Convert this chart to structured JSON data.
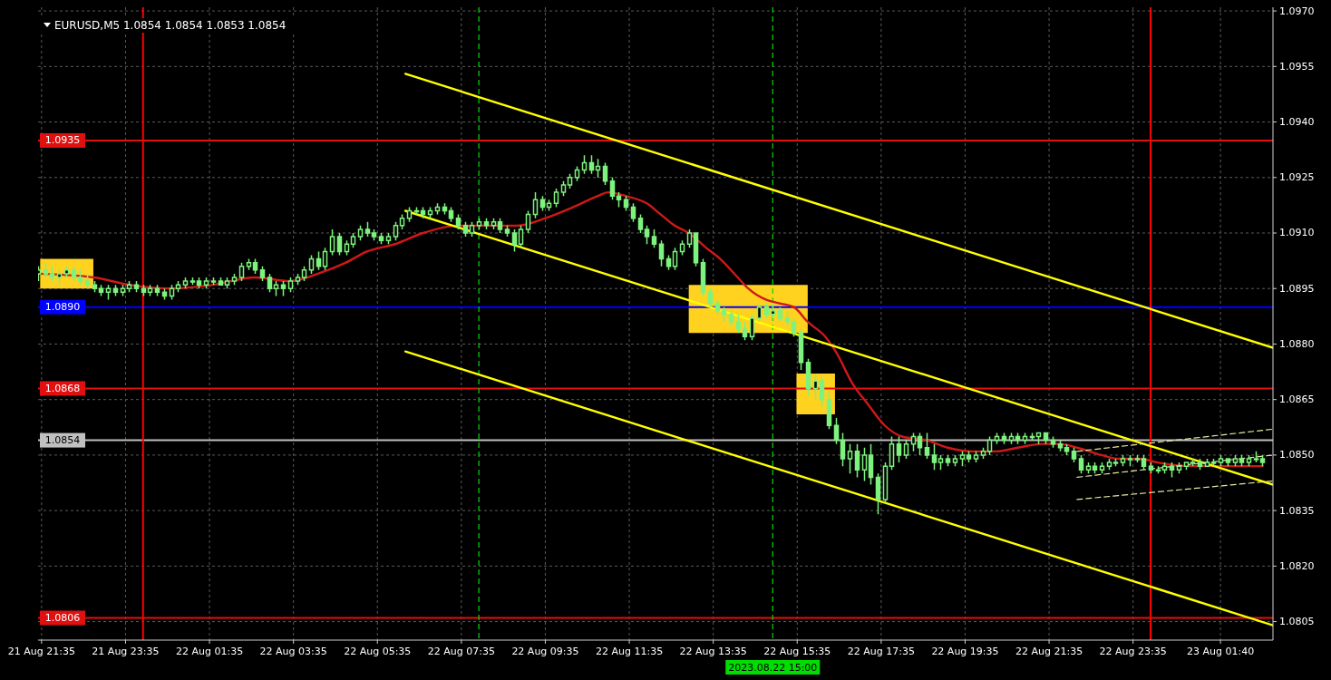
{
  "chart_data": {
    "type": "candlestick",
    "title": "EURUSD,M5 1.0854 1.0854 1.0853 1.0854",
    "xlim": [
      "2023-08-21T21:30",
      "2023-08-23T02:55"
    ],
    "xticks": [
      {
        "value": "2023-08-21T21:35",
        "label": "21 Aug 21:35"
      },
      {
        "value": "2023-08-21T23:35",
        "label": "21 Aug 23:35"
      },
      {
        "value": "2023-08-22T01:35",
        "label": "22 Aug 01:35"
      },
      {
        "value": "2023-08-22T03:35",
        "label": "22 Aug 03:35"
      },
      {
        "value": "2023-08-22T05:35",
        "label": "22 Aug 05:35"
      },
      {
        "value": "2023-08-22T07:35",
        "label": "22 Aug 07:35"
      },
      {
        "value": "2023-08-22T09:35",
        "label": "22 Aug 09:35"
      },
      {
        "value": "2023-08-22T11:35",
        "label": "22 Aug 11:35"
      },
      {
        "value": "2023-08-22T13:35",
        "label": "22 Aug 13:35"
      },
      {
        "value": "2023-08-22T15:35",
        "label": "22 Aug 15:35"
      },
      {
        "value": "2023-08-22T17:35",
        "label": "22 Aug 17:35"
      },
      {
        "value": "2023-08-22T19:35",
        "label": "22 Aug 19:35"
      },
      {
        "value": "2023-08-22T21:35",
        "label": "22 Aug 21:35"
      },
      {
        "value": "2023-08-22T23:35",
        "label": "22 Aug 23:35"
      },
      {
        "value": "2023-08-23T01:40",
        "label": "23 Aug 01:40"
      }
    ],
    "ylim": [
      1.08,
      1.0971
    ],
    "yticks": [
      {
        "value": 1.097,
        "label": "1.0970"
      },
      1.0955,
      {
        "value": 1.094,
        "label": "1.0940"
      },
      1.0925,
      {
        "value": 1.091,
        "label": "1.0910"
      },
      1.0895,
      {
        "value": 1.088,
        "label": "1.0880"
      },
      1.0865,
      {
        "value": 1.085,
        "label": "1.0850"
      },
      1.0835,
      {
        "value": 1.082,
        "label": "1.0820"
      },
      1.0805
    ],
    "grid": true,
    "series": [
      {
        "type": "area",
        "color": "#ffd21f",
        "x": [
          "2023-08-21T21:33",
          "2023-08-21T22:49"
        ],
        "values": [
          null,
          null
        ],
        "lower": [
          1.0895,
          1.0895
        ],
        "upper": [
          1.0903,
          1.0903
        ]
      },
      {
        "type": "area",
        "color": "#ffd21f",
        "x": [
          "2023-08-22T13:00",
          "2023-08-22T15:50"
        ],
        "values": [
          null,
          null
        ],
        "lower": [
          1.0883,
          1.0883
        ],
        "upper": [
          1.0896,
          1.0896
        ]
      },
      {
        "type": "area",
        "color": "#ffd21f",
        "x": [
          "2023-08-22T15:34",
          "2023-08-22T16:29"
        ],
        "values": [
          null,
          null
        ],
        "lower": [
          1.0861,
          1.0861
        ],
        "upper": [
          1.0872,
          1.0872
        ]
      },
      {
        "type": "candlestick",
        "color": "#7ef27e",
        "x": [
          "2023-08-21T21:30",
          "2023-08-21T21:40",
          "2023-08-21T21:50",
          "2023-08-21T22:00",
          "2023-08-21T22:10",
          "2023-08-21T22:20",
          "2023-08-21T22:30",
          "2023-08-21T22:40",
          "2023-08-21T22:50",
          "2023-08-21T23:00",
          "2023-08-21T23:10",
          "2023-08-21T23:20",
          "2023-08-21T23:30",
          "2023-08-21T23:40",
          "2023-08-21T23:50",
          "2023-08-22T00:00",
          "2023-08-22T00:10",
          "2023-08-22T00:20",
          "2023-08-22T00:30",
          "2023-08-22T00:40",
          "2023-08-22T00:50",
          "2023-08-22T01:00",
          "2023-08-22T01:10",
          "2023-08-22T01:20",
          "2023-08-22T01:30",
          "2023-08-22T01:40",
          "2023-08-22T01:50",
          "2023-08-22T02:00",
          "2023-08-22T02:10",
          "2023-08-22T02:20",
          "2023-08-22T02:30",
          "2023-08-22T02:40",
          "2023-08-22T02:50",
          "2023-08-22T03:00",
          "2023-08-22T03:10",
          "2023-08-22T03:20",
          "2023-08-22T03:30",
          "2023-08-22T03:40",
          "2023-08-22T03:50",
          "2023-08-22T04:00",
          "2023-08-22T04:10",
          "2023-08-22T04:20",
          "2023-08-22T04:30",
          "2023-08-22T04:40",
          "2023-08-22T04:50",
          "2023-08-22T05:00",
          "2023-08-22T05:10",
          "2023-08-22T05:20",
          "2023-08-22T05:30",
          "2023-08-22T05:40",
          "2023-08-22T05:50",
          "2023-08-22T06:00",
          "2023-08-22T06:10",
          "2023-08-22T06:20",
          "2023-08-22T06:30",
          "2023-08-22T06:40",
          "2023-08-22T06:50",
          "2023-08-22T07:00",
          "2023-08-22T07:10",
          "2023-08-22T07:20",
          "2023-08-22T07:30",
          "2023-08-22T07:40",
          "2023-08-22T07:50",
          "2023-08-22T08:00",
          "2023-08-22T08:10",
          "2023-08-22T08:20",
          "2023-08-22T08:30",
          "2023-08-22T08:40",
          "2023-08-22T08:50",
          "2023-08-22T09:00",
          "2023-08-22T09:10",
          "2023-08-22T09:20",
          "2023-08-22T09:30",
          "2023-08-22T09:40",
          "2023-08-22T09:50",
          "2023-08-22T10:00",
          "2023-08-22T10:10",
          "2023-08-22T10:20",
          "2023-08-22T10:30",
          "2023-08-22T10:40",
          "2023-08-22T10:50",
          "2023-08-22T11:00",
          "2023-08-22T11:10",
          "2023-08-22T11:20",
          "2023-08-22T11:30",
          "2023-08-22T11:40",
          "2023-08-22T11:50",
          "2023-08-22T12:00",
          "2023-08-22T12:10",
          "2023-08-22T12:20",
          "2023-08-22T12:30",
          "2023-08-22T12:40",
          "2023-08-22T12:50",
          "2023-08-22T13:00",
          "2023-08-22T13:10",
          "2023-08-22T13:20",
          "2023-08-22T13:30",
          "2023-08-22T13:40",
          "2023-08-22T13:50",
          "2023-08-22T14:00",
          "2023-08-22T14:10",
          "2023-08-22T14:20",
          "2023-08-22T14:30",
          "2023-08-22T14:40",
          "2023-08-22T14:50",
          "2023-08-22T15:00",
          "2023-08-22T15:10",
          "2023-08-22T15:20",
          "2023-08-22T15:30",
          "2023-08-22T15:40",
          "2023-08-22T15:50",
          "2023-08-22T16:00",
          "2023-08-22T16:10",
          "2023-08-22T16:20",
          "2023-08-22T16:30",
          "2023-08-22T16:40",
          "2023-08-22T16:50",
          "2023-08-22T17:00",
          "2023-08-22T17:10",
          "2023-08-22T17:20",
          "2023-08-22T17:30",
          "2023-08-22T17:40",
          "2023-08-22T17:50",
          "2023-08-22T18:00",
          "2023-08-22T18:10",
          "2023-08-22T18:20",
          "2023-08-22T18:30",
          "2023-08-22T18:40",
          "2023-08-22T18:50",
          "2023-08-22T19:00",
          "2023-08-22T19:10",
          "2023-08-22T19:20",
          "2023-08-22T19:30",
          "2023-08-22T19:40",
          "2023-08-22T19:50",
          "2023-08-22T20:00",
          "2023-08-22T20:10",
          "2023-08-22T20:20",
          "2023-08-22T20:30",
          "2023-08-22T20:40",
          "2023-08-22T20:50",
          "2023-08-22T21:00",
          "2023-08-22T21:10",
          "2023-08-22T21:20",
          "2023-08-22T21:30",
          "2023-08-22T21:40",
          "2023-08-22T21:50",
          "2023-08-22T22:00",
          "2023-08-22T22:10",
          "2023-08-22T22:20",
          "2023-08-22T22:30",
          "2023-08-22T22:40",
          "2023-08-22T22:50",
          "2023-08-22T23:00",
          "2023-08-22T23:10",
          "2023-08-22T23:20",
          "2023-08-22T23:30",
          "2023-08-22T23:40",
          "2023-08-22T23:50",
          "2023-08-23T00:00",
          "2023-08-23T00:10",
          "2023-08-23T00:20",
          "2023-08-23T00:30",
          "2023-08-23T00:40",
          "2023-08-23T00:50",
          "2023-08-23T01:00",
          "2023-08-23T01:10",
          "2023-08-23T01:20",
          "2023-08-23T01:30",
          "2023-08-23T01:40",
          "2023-08-23T01:50",
          "2023-08-23T02:00",
          "2023-08-23T02:10",
          "2023-08-23T02:20",
          "2023-08-23T02:30",
          "2023-08-23T02:40"
        ],
        "ohlc": [
          [
            1.0899,
            1.0901,
            1.0897,
            1.09
          ],
          [
            1.09,
            1.0902,
            1.0898,
            1.0899
          ],
          [
            1.0899,
            1.0901,
            1.0897,
            1.0898
          ],
          [
            1.0898,
            1.09,
            1.0896,
            1.0899
          ],
          [
            1.0899,
            1.0901,
            1.0898,
            1.09
          ],
          [
            1.09,
            1.0901,
            1.0897,
            1.0898
          ],
          [
            1.0898,
            1.09,
            1.0896,
            1.0897
          ],
          [
            1.0897,
            1.0899,
            1.0895,
            1.0896
          ],
          [
            1.0896,
            1.0897,
            1.0894,
            1.0895
          ],
          [
            1.0895,
            1.0896,
            1.0893,
            1.0894
          ],
          [
            1.0894,
            1.0896,
            1.0892,
            1.0895
          ],
          [
            1.0895,
            1.0896,
            1.0893,
            1.0894
          ],
          [
            1.0894,
            1.0896,
            1.0893,
            1.0895
          ],
          [
            1.0895,
            1.0897,
            1.0894,
            1.0896
          ],
          [
            1.0896,
            1.0897,
            1.0894,
            1.0895
          ],
          [
            1.0895,
            1.0896,
            1.0893,
            1.0894
          ],
          [
            1.0894,
            1.0896,
            1.0893,
            1.0895
          ],
          [
            1.0895,
            1.0896,
            1.0893,
            1.0894
          ],
          [
            1.0894,
            1.0895,
            1.0892,
            1.0893
          ],
          [
            1.0893,
            1.0896,
            1.0892,
            1.0895
          ],
          [
            1.0895,
            1.0897,
            1.0894,
            1.0896
          ],
          [
            1.0896,
            1.0898,
            1.0895,
            1.0897
          ],
          [
            1.0897,
            1.0898,
            1.0896,
            1.0897
          ],
          [
            1.0897,
            1.0898,
            1.0895,
            1.0896
          ],
          [
            1.0896,
            1.0898,
            1.0895,
            1.0897
          ],
          [
            1.0897,
            1.0898,
            1.0896,
            1.0897
          ],
          [
            1.0897,
            1.0898,
            1.0896,
            1.0896
          ],
          [
            1.0896,
            1.0898,
            1.0895,
            1.0897
          ],
          [
            1.0897,
            1.0899,
            1.0896,
            1.0898
          ],
          [
            1.0898,
            1.0902,
            1.0897,
            1.0901
          ],
          [
            1.0901,
            1.0903,
            1.09,
            1.0902
          ],
          [
            1.0902,
            1.0903,
            1.0899,
            1.09
          ],
          [
            1.09,
            1.0901,
            1.0897,
            1.0898
          ],
          [
            1.0898,
            1.0899,
            1.0894,
            1.0895
          ],
          [
            1.0895,
            1.0897,
            1.0893,
            1.0896
          ],
          [
            1.0896,
            1.0897,
            1.0893,
            1.0895
          ],
          [
            1.0895,
            1.0898,
            1.0894,
            1.0897
          ],
          [
            1.0897,
            1.0899,
            1.0896,
            1.0898
          ],
          [
            1.0898,
            1.0901,
            1.0897,
            1.09
          ],
          [
            1.09,
            1.0904,
            1.0899,
            1.0903
          ],
          [
            1.0903,
            1.0905,
            1.09,
            1.0901
          ],
          [
            1.0901,
            1.0906,
            1.09,
            1.0905
          ],
          [
            1.0905,
            1.0911,
            1.0904,
            1.0909
          ],
          [
            1.0909,
            1.091,
            1.0904,
            1.0905
          ],
          [
            1.0905,
            1.0908,
            1.0904,
            1.0907
          ],
          [
            1.0907,
            1.091,
            1.0906,
            1.0909
          ],
          [
            1.0909,
            1.0912,
            1.0908,
            1.0911
          ],
          [
            1.0911,
            1.0913,
            1.0909,
            1.091
          ],
          [
            1.091,
            1.0911,
            1.0908,
            1.0909
          ],
          [
            1.0909,
            1.091,
            1.0907,
            1.0908
          ],
          [
            1.0908,
            1.091,
            1.0907,
            1.0909
          ],
          [
            1.0909,
            1.0913,
            1.0908,
            1.0912
          ],
          [
            1.0912,
            1.0915,
            1.0911,
            1.0914
          ],
          [
            1.0914,
            1.0917,
            1.0913,
            1.0916
          ],
          [
            1.0916,
            1.0917,
            1.0915,
            1.0916
          ],
          [
            1.0916,
            1.0917,
            1.0914,
            1.0915
          ],
          [
            1.0915,
            1.0917,
            1.0914,
            1.0916
          ],
          [
            1.0916,
            1.0918,
            1.0915,
            1.0917
          ],
          [
            1.0917,
            1.0918,
            1.0915,
            1.0916
          ],
          [
            1.0916,
            1.0917,
            1.0913,
            1.0914
          ],
          [
            1.0914,
            1.0915,
            1.0911,
            1.0912
          ],
          [
            1.0912,
            1.0913,
            1.0909,
            1.091
          ],
          [
            1.091,
            1.0913,
            1.0909,
            1.0912
          ],
          [
            1.0912,
            1.0914,
            1.0911,
            1.0913
          ],
          [
            1.0913,
            1.0914,
            1.0911,
            1.0912
          ],
          [
            1.0912,
            1.0914,
            1.0911,
            1.0913
          ],
          [
            1.0913,
            1.0914,
            1.091,
            1.0911
          ],
          [
            1.0911,
            1.0912,
            1.0909,
            1.091
          ],
          [
            1.091,
            1.0911,
            1.0905,
            1.0907
          ],
          [
            1.0907,
            1.0912,
            1.0906,
            1.0911
          ],
          [
            1.0911,
            1.0916,
            1.091,
            1.0915
          ],
          [
            1.0915,
            1.0921,
            1.0914,
            1.0919
          ],
          [
            1.0919,
            1.092,
            1.0916,
            1.0917
          ],
          [
            1.0917,
            1.0919,
            1.0916,
            1.0918
          ],
          [
            1.0918,
            1.0922,
            1.0917,
            1.0921
          ],
          [
            1.0921,
            1.0924,
            1.092,
            1.0923
          ],
          [
            1.0923,
            1.0926,
            1.0922,
            1.0925
          ],
          [
            1.0925,
            1.0928,
            1.0924,
            1.0927
          ],
          [
            1.0927,
            1.0931,
            1.0926,
            1.0929
          ],
          [
            1.0929,
            1.0931,
            1.0926,
            1.0927
          ],
          [
            1.0927,
            1.093,
            1.0925,
            1.0928
          ],
          [
            1.0928,
            1.0929,
            1.0923,
            1.0924
          ],
          [
            1.0924,
            1.0925,
            1.0919,
            1.092
          ],
          [
            1.092,
            1.0921,
            1.0917,
            1.0919
          ],
          [
            1.0919,
            1.092,
            1.0916,
            1.0917
          ],
          [
            1.0917,
            1.0918,
            1.0913,
            1.0914
          ],
          [
            1.0914,
            1.0915,
            1.091,
            1.0911
          ],
          [
            1.0911,
            1.0912,
            1.0907,
            1.0909
          ],
          [
            1.0909,
            1.0911,
            1.0906,
            1.0907
          ],
          [
            1.0907,
            1.0908,
            1.0901,
            1.0903
          ],
          [
            1.0903,
            1.0904,
            1.09,
            1.0901
          ],
          [
            1.0901,
            1.0906,
            1.09,
            1.0905
          ],
          [
            1.0905,
            1.0908,
            1.0904,
            1.0907
          ],
          [
            1.0907,
            1.0911,
            1.0906,
            1.091
          ],
          [
            1.091,
            1.091,
            1.0901,
            1.0902
          ],
          [
            1.0902,
            1.0903,
            1.0893,
            1.0894
          ],
          [
            1.0894,
            1.0895,
            1.089,
            1.0891
          ],
          [
            1.0891,
            1.0892,
            1.0888,
            1.0889
          ],
          [
            1.0889,
            1.089,
            1.0886,
            1.0888
          ],
          [
            1.0888,
            1.0889,
            1.0885,
            1.0886
          ],
          [
            1.0886,
            1.0888,
            1.0883,
            1.0884
          ],
          [
            1.0884,
            1.0886,
            1.0881,
            1.0882
          ],
          [
            1.0882,
            1.0888,
            1.0881,
            1.0887
          ],
          [
            1.0887,
            1.0891,
            1.0886,
            1.089
          ],
          [
            1.089,
            1.0891,
            1.0887,
            1.0888
          ],
          [
            1.0888,
            1.0891,
            1.0887,
            1.0889
          ],
          [
            1.0889,
            1.089,
            1.0886,
            1.0887
          ],
          [
            1.0887,
            1.0889,
            1.0885,
            1.0886
          ],
          [
            1.0886,
            1.0887,
            1.0882,
            1.0883
          ],
          [
            1.0883,
            1.0884,
            1.0873,
            1.0875
          ],
          [
            1.0875,
            1.0876,
            1.0866,
            1.0868
          ],
          [
            1.0868,
            1.0872,
            1.0865,
            1.087
          ],
          [
            1.087,
            1.0871,
            1.0863,
            1.0865
          ],
          [
            1.0865,
            1.0867,
            1.0857,
            1.0858
          ],
          [
            1.0858,
            1.086,
            1.0853,
            1.0854
          ],
          [
            1.0854,
            1.0856,
            1.0847,
            1.0849
          ],
          [
            1.0849,
            1.0853,
            1.0845,
            1.0851
          ],
          [
            1.0851,
            1.0853,
            1.0844,
            1.0846
          ],
          [
            1.0846,
            1.0852,
            1.0843,
            1.085
          ],
          [
            1.085,
            1.0853,
            1.0842,
            1.0844
          ],
          [
            1.0844,
            1.0845,
            1.0834,
            1.0838
          ],
          [
            1.0838,
            1.0848,
            1.0837,
            1.0847
          ],
          [
            1.0847,
            1.0855,
            1.0846,
            1.0853
          ],
          [
            1.0853,
            1.0855,
            1.0848,
            1.085
          ],
          [
            1.085,
            1.0854,
            1.0849,
            1.0853
          ],
          [
            1.0853,
            1.0856,
            1.0851,
            1.0855
          ],
          [
            1.0855,
            1.0856,
            1.085,
            1.0852
          ],
          [
            1.0852,
            1.0856,
            1.0849,
            1.085
          ],
          [
            1.085,
            1.0853,
            1.0846,
            1.0848
          ],
          [
            1.0848,
            1.085,
            1.0846,
            1.0849
          ],
          [
            1.0849,
            1.085,
            1.0847,
            1.0848
          ],
          [
            1.0848,
            1.085,
            1.0847,
            1.0849
          ],
          [
            1.0849,
            1.0851,
            1.0847,
            1.085
          ],
          [
            1.085,
            1.0851,
            1.0848,
            1.0849
          ],
          [
            1.0849,
            1.0851,
            1.0848,
            1.085
          ],
          [
            1.085,
            1.0852,
            1.0849,
            1.0851
          ],
          [
            1.0851,
            1.0855,
            1.085,
            1.0854
          ],
          [
            1.0854,
            1.0856,
            1.0853,
            1.0855
          ],
          [
            1.0855,
            1.0856,
            1.0853,
            1.0854
          ],
          [
            1.0854,
            1.0856,
            1.0853,
            1.0855
          ],
          [
            1.0855,
            1.0856,
            1.0853,
            1.0854
          ],
          [
            1.0854,
            1.0856,
            1.0853,
            1.0855
          ],
          [
            1.0855,
            1.0856,
            1.0854,
            1.0855
          ],
          [
            1.0855,
            1.0856,
            1.0853,
            1.0856
          ],
          [
            1.0856,
            1.0856,
            1.0853,
            1.0854
          ],
          [
            1.0854,
            1.0855,
            1.0852,
            1.0853
          ],
          [
            1.0853,
            1.0854,
            1.0851,
            1.0852
          ],
          [
            1.0852,
            1.0853,
            1.085,
            1.0851
          ],
          [
            1.0851,
            1.0852,
            1.0848,
            1.0849
          ],
          [
            1.0849,
            1.085,
            1.0845,
            1.0846
          ],
          [
            1.0846,
            1.0848,
            1.0845,
            1.0847
          ],
          [
            1.0847,
            1.0848,
            1.0845,
            1.0846
          ],
          [
            1.0846,
            1.0848,
            1.0845,
            1.0847
          ],
          [
            1.0847,
            1.0849,
            1.0846,
            1.0848
          ],
          [
            1.0848,
            1.0849,
            1.0847,
            1.0848
          ],
          [
            1.0848,
            1.085,
            1.0847,
            1.0849
          ],
          [
            1.0849,
            1.085,
            1.0847,
            1.0849
          ],
          [
            1.0849,
            1.085,
            1.0848,
            1.0849
          ],
          [
            1.0849,
            1.085,
            1.0846,
            1.0847
          ],
          [
            1.0847,
            1.0848,
            1.0845,
            1.0846
          ],
          [
            1.0846,
            1.0847,
            1.0845,
            1.0846
          ],
          [
            1.0846,
            1.0848,
            1.0845,
            1.0847
          ],
          [
            1.0847,
            1.0848,
            1.0844,
            1.0846
          ],
          [
            1.0846,
            1.0848,
            1.0845,
            1.0847
          ],
          [
            1.0847,
            1.0848,
            1.0846,
            1.0848
          ],
          [
            1.0848,
            1.0849,
            1.0847,
            1.0848
          ],
          [
            1.0848,
            1.0849,
            1.0846,
            1.0847
          ],
          [
            1.0847,
            1.0849,
            1.0847,
            1.0848
          ],
          [
            1.0848,
            1.0849,
            1.0847,
            1.0848
          ],
          [
            1.0848,
            1.085,
            1.0847,
            1.0849
          ],
          [
            1.0849,
            1.0849,
            1.0847,
            1.0848
          ],
          [
            1.0848,
            1.085,
            1.0847,
            1.0849
          ],
          [
            1.0849,
            1.085,
            1.0847,
            1.0848
          ],
          [
            1.0848,
            1.085,
            1.0847,
            1.0849
          ],
          [
            1.0849,
            1.0851,
            1.0848,
            1.0849
          ],
          [
            1.0849,
            1.085,
            1.0847,
            1.0848
          ]
        ]
      },
      {
        "type": "line",
        "color": "#d01818",
        "x": [
          "2023-08-21T21:30",
          "2023-08-21T22:50",
          "2023-08-21T23:40",
          "2023-08-22T00:40",
          "2023-08-22T01:40",
          "2023-08-22T02:40",
          "2023-08-22T03:30",
          "2023-08-22T04:10",
          "2023-08-22T04:50",
          "2023-08-22T05:20",
          "2023-08-22T06:00",
          "2023-08-22T06:40",
          "2023-08-22T07:30",
          "2023-08-22T08:10",
          "2023-08-22T08:55",
          "2023-08-22T09:35",
          "2023-08-22T10:15",
          "2023-08-22T10:50",
          "2023-08-22T11:05",
          "2023-08-22T11:30",
          "2023-08-22T12:00",
          "2023-08-22T12:20",
          "2023-08-22T12:40",
          "2023-08-22T13:00",
          "2023-08-22T13:25",
          "2023-08-22T13:45",
          "2023-08-22T14:10",
          "2023-08-22T14:25",
          "2023-08-22T14:50",
          "2023-08-22T15:10",
          "2023-08-22T15:30",
          "2023-08-22T15:50",
          "2023-08-22T16:15",
          "2023-08-22T16:30",
          "2023-08-22T16:55",
          "2023-08-22T17:15",
          "2023-08-22T17:40",
          "2023-08-22T18:05",
          "2023-08-22T18:40",
          "2023-08-22T19:10",
          "2023-08-22T19:45",
          "2023-08-22T20:20",
          "2023-08-22T20:50",
          "2023-08-22T21:25",
          "2023-08-22T21:50",
          "2023-08-22T22:15",
          "2023-08-22T22:50",
          "2023-08-22T23:15",
          "2023-08-22T23:45",
          "2023-08-23T00:10",
          "2023-08-23T00:55",
          "2023-08-23T01:35",
          "2023-08-23T02:40"
        ],
        "values": [
          1.0899,
          1.0898,
          1.0896,
          1.0895,
          1.0896,
          1.0898,
          1.0897,
          1.0899,
          1.0902,
          1.0905,
          1.0907,
          1.091,
          1.0912,
          1.0912,
          1.0912,
          1.0914,
          1.0917,
          1.092,
          1.0921,
          1.092,
          1.0918,
          1.0915,
          1.0912,
          1.091,
          1.0906,
          1.0903,
          1.0898,
          1.0895,
          1.0892,
          1.0891,
          1.089,
          1.0886,
          1.0882,
          1.0878,
          1.0869,
          1.0864,
          1.0858,
          1.0855,
          1.0854,
          1.0852,
          1.0851,
          1.0851,
          1.0852,
          1.0853,
          1.0853,
          1.0852,
          1.085,
          1.0849,
          1.0849,
          1.0848,
          1.0847,
          1.0847,
          1.0847
        ]
      },
      {
        "type": "line",
        "color": "#ffff00",
        "x": [
          "2023-08-22T06:15",
          "2023-08-23T02:55"
        ],
        "values": [
          1.0953,
          1.0879
        ]
      },
      {
        "type": "line",
        "color": "#ffff00",
        "x": [
          "2023-08-22T06:15",
          "2023-08-23T02:55"
        ],
        "values": [
          1.0916,
          1.0842
        ]
      },
      {
        "type": "line",
        "color": "#ffff00",
        "x": [
          "2023-08-22T06:15",
          "2023-08-23T02:55"
        ],
        "values": [
          1.0878,
          1.0804
        ]
      },
      {
        "type": "line",
        "color": "#e8e8a0",
        "line_style": "dashed",
        "x": [
          "2023-08-22T22:15",
          "2023-08-23T02:55"
        ],
        "values": [
          1.0851,
          1.0857
        ]
      },
      {
        "type": "line",
        "color": "#e8e8a0",
        "line_style": "dashed",
        "x": [
          "2023-08-22T22:15",
          "2023-08-23T02:55"
        ],
        "values": [
          1.0844,
          1.085
        ]
      },
      {
        "type": "line",
        "color": "#e8e8a0",
        "line_style": "dashed",
        "x": [
          "2023-08-22T22:15",
          "2023-08-23T02:55"
        ],
        "values": [
          1.0838,
          1.0843
        ]
      }
    ],
    "ref_lines": [
      {
        "axis": "y",
        "value": 1.0935,
        "label": "1.0935",
        "color": "#e01010"
      },
      {
        "axis": "y",
        "value": 1.089,
        "label": "1.0890",
        "color": "#0000ff"
      },
      {
        "axis": "y",
        "value": 1.0868,
        "label": "1.0868",
        "color": "#e01010"
      },
      {
        "axis": "y",
        "value": 1.0854,
        "label": "1.0854",
        "color": "#c0c0c0"
      },
      {
        "axis": "y",
        "value": 1.0806,
        "label": "1.0806",
        "color": "#e01010"
      },
      {
        "axis": "x",
        "value": "2023-08-22T00:00",
        "color": "#ff0000"
      },
      {
        "axis": "x",
        "value": "2023-08-23T00:00",
        "color": "#ff0000"
      },
      {
        "axis": "x",
        "value": "2023-08-22T08:00",
        "color": "#00dd00",
        "line_style": "dashed"
      },
      {
        "axis": "x",
        "value": "2023-08-22T15:00",
        "label": "2023.08.22 15:00",
        "color": "#00dd00",
        "line_style": "dashed"
      }
    ]
  }
}
